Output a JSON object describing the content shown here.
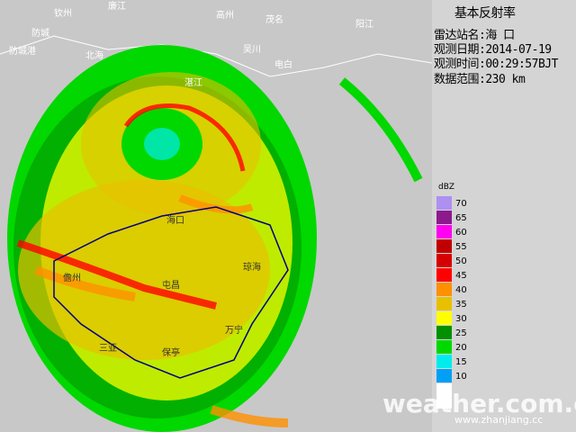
{
  "panel": {
    "title": "基本反射率",
    "station": "雷达站名:海 口",
    "date": "观测日期:2014-07-19",
    "time": "观测时间:00:29:57BJT",
    "range": "数据范围:230 km"
  },
  "legend": {
    "unit": "dBZ",
    "levels": [
      {
        "label": "70",
        "color": "#ad90f0"
      },
      {
        "label": "65",
        "color": "#8c1a8c"
      },
      {
        "label": "60",
        "color": "#ff00f0"
      },
      {
        "label": "55",
        "color": "#c00000"
      },
      {
        "label": "50",
        "color": "#d60000"
      },
      {
        "label": "45",
        "color": "#ff0000"
      },
      {
        "label": "40",
        "color": "#ff9000"
      },
      {
        "label": "35",
        "color": "#e7c000"
      },
      {
        "label": "30",
        "color": "#ffff00"
      },
      {
        "label": "25",
        "color": "#019000"
      },
      {
        "label": "20",
        "color": "#00d800"
      },
      {
        "label": "15",
        "color": "#00ecec"
      },
      {
        "label": "10",
        "color": "#01a0f6"
      }
    ]
  },
  "map_labels": [
    "钦州",
    "防城",
    "防城港",
    "北海",
    "廉江",
    "湛江",
    "高州",
    "茂名",
    "吴川",
    "电白",
    "阳江",
    "海口",
    "儋州",
    "屯昌",
    "琼海",
    "万宁",
    "保亭",
    "三亚"
  ],
  "watermark": {
    "left": "weather.com.cn",
    "right": "www.zhanjiang.cc"
  }
}
